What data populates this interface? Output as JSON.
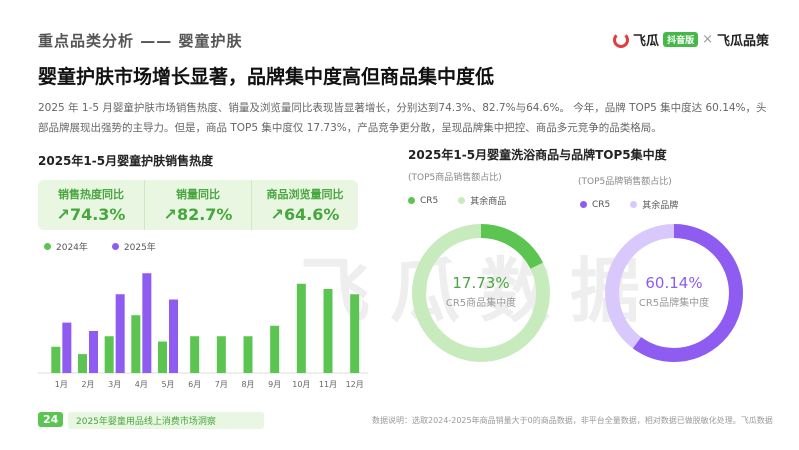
{
  "header": {
    "section": "重点品类分析 —— 婴童护肤",
    "title": "婴童护肤市场增长显著，品牌集中度高但商品集中度低",
    "logo": {
      "brand": "飞瓜",
      "badge": "抖音版",
      "separator": "×",
      "partner": "飞瓜品策"
    }
  },
  "description": "2025 年 1-5 月婴童护肤市场销售热度、销量及浏览量同比表现皆显著增长，分别达到74.3%、82.7%与64.6%。 今年，品牌 TOP5 集中度达 60.14%，头部品牌展现出强势的主导力。但是，商品 TOP5 集中度仅 17.73%，产品竞争更分散，呈现品牌集中把控、商品多元竞争的品类格局。",
  "left_chart": {
    "title": "2025年1-5月婴童护肤销售热度",
    "kpis": [
      {
        "label": "销售热度同比",
        "value": "74.3%"
      },
      {
        "label": "销量同比",
        "value": "82.7%"
      },
      {
        "label": "商品浏览量同比",
        "value": "64.6%"
      }
    ],
    "legend": [
      "2024年",
      "2025年"
    ]
  },
  "right_chart": {
    "title": "2025年1-5月婴童洗浴商品与品牌TOP5集中度",
    "donut1": {
      "subtitle": "(TOP5商品销售额占比)",
      "legend": [
        "CR5",
        "其余商品"
      ],
      "value": "17.73%",
      "center_label": "CR5商品集中度"
    },
    "donut2": {
      "subtitle": "(TOP5品牌销售额占比)",
      "legend": [
        "CR5",
        "其余品牌"
      ],
      "value": "60.14%",
      "center_label": "CR5品牌集中度"
    }
  },
  "watermark": "飞瓜数据",
  "footer": {
    "page": "24",
    "report": "2025年婴童用品线上消费市场洞察",
    "note": "数据说明：选取2024-2025年商品销量大于0的商品数据，非平台全量数据，相对数据已做脱敏化处理。飞瓜数据"
  },
  "colors": {
    "green": "#5cc450",
    "purple": "#8e5cf0",
    "light_green": "#c8ebbd",
    "light_purple": "#d9c8fb"
  },
  "chart_data": [
    {
      "type": "bar",
      "title": "2025年1-5月婴童护肤销售热度",
      "categories": [
        "1月",
        "2月",
        "3月",
        "4月",
        "5月",
        "6月",
        "7月",
        "8月",
        "9月",
        "10月",
        "11月",
        "12月"
      ],
      "series": [
        {
          "name": "2024年",
          "values": [
            25,
            18,
            35,
            55,
            30,
            35,
            35,
            35,
            45,
            85,
            80,
            75
          ]
        },
        {
          "name": "2025年",
          "values": [
            48,
            40,
            75,
            95,
            70,
            null,
            null,
            null,
            null,
            null,
            null,
            null
          ]
        }
      ],
      "ylim": [
        0,
        100
      ]
    },
    {
      "type": "pie",
      "subtitle": "(TOP5商品销售额占比)",
      "labels": [
        "CR5",
        "其余商品"
      ],
      "values": [
        17.73,
        82.27
      ]
    },
    {
      "type": "pie",
      "subtitle": "(TOP5品牌销售额占比)",
      "labels": [
        "CR5",
        "其余品牌"
      ],
      "values": [
        60.14,
        39.86
      ]
    }
  ]
}
